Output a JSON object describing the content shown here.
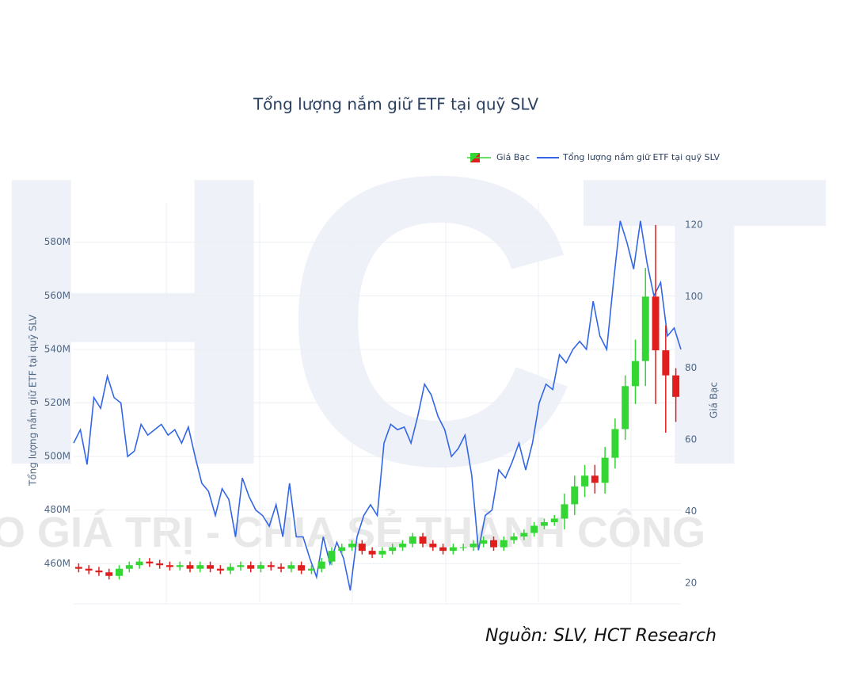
{
  "chart_data": {
    "type": "candlestick_line",
    "title": "Tổng lượng nắm giữ ETF tại quỹ SLV",
    "y_label": "Tổng lượng nắm giữ ETF tại quỹ SLV",
    "y2_label": "Giá Bạc",
    "watermark": "HCT",
    "watermark_slogan": "O GIÁ TRỊ - CHIA SẺ THÀNH CÔNG",
    "source": "Nguồn: SLV, HCT Research",
    "ylim": [
      445,
      595
    ],
    "yticks": [
      {
        "value": 460,
        "label": "460M"
      },
      {
        "value": 480,
        "label": "480M"
      },
      {
        "value": 500,
        "label": "500M"
      },
      {
        "value": 520,
        "label": "520M"
      },
      {
        "value": 540,
        "label": "540M"
      },
      {
        "value": 560,
        "label": "560M"
      },
      {
        "value": 580,
        "label": "580M"
      }
    ],
    "y2lim": [
      14.2,
      126.4
    ],
    "y2ticks": [
      20,
      40,
      60,
      80,
      100,
      120
    ],
    "grid": true,
    "legend": "top-right",
    "series": [
      {
        "name": "Giá Bạc",
        "type": "candlestick",
        "axis": "y2",
        "increasing_color": "#33d633",
        "decreasing_color": "#e01e1e",
        "open": [
          24.5,
          24,
          23.5,
          23,
          22,
          24,
          25,
          26,
          25.5,
          25,
          24.5,
          25,
          24,
          25,
          24,
          23.5,
          24.5,
          25,
          24,
          25,
          24.5,
          24,
          25,
          23.5,
          24,
          26,
          29,
          30,
          31,
          29,
          28,
          29,
          30,
          31,
          33,
          31,
          30,
          29,
          30,
          30,
          31,
          32,
          30,
          32,
          33,
          34,
          36,
          37,
          38,
          42,
          47,
          50,
          48,
          55,
          63,
          75,
          82,
          100,
          85,
          78
        ],
        "high": [
          25.5,
          25,
          24.5,
          24,
          25,
          26,
          27,
          27,
          26.5,
          26,
          26,
          26,
          26,
          26,
          25,
          25.5,
          26,
          26,
          26,
          26,
          25.5,
          26,
          26,
          25,
          27,
          30,
          31,
          32,
          32,
          30,
          30,
          31,
          32,
          34,
          34,
          32,
          31,
          31,
          31,
          32,
          33,
          33,
          33,
          34,
          35,
          37,
          38,
          39,
          45,
          50,
          53,
          53,
          58,
          66,
          78,
          88,
          108,
          120,
          92,
          80
        ],
        "low": [
          23,
          22.5,
          22,
          21,
          21,
          23,
          24,
          24.5,
          24,
          23.5,
          23.5,
          23,
          23,
          23,
          22.5,
          22.5,
          23.5,
          23,
          23,
          23.5,
          23,
          23,
          22.5,
          22.5,
          23,
          25,
          28,
          29,
          28,
          27,
          27,
          28,
          29,
          30,
          30,
          29,
          28,
          28,
          29,
          29,
          30,
          29,
          29,
          31,
          32,
          33,
          35,
          36,
          35,
          39,
          44,
          45,
          45,
          52,
          60,
          70,
          75,
          70,
          62,
          65
        ],
        "close": [
          24,
          23.5,
          23,
          22,
          24,
          25,
          26,
          25.5,
          25,
          24.5,
          25,
          24,
          25,
          24,
          23.5,
          24.5,
          25,
          24,
          25,
          24.5,
          24,
          25,
          23.5,
          24,
          26,
          29,
          30,
          31,
          29,
          28,
          29,
          30,
          31,
          33,
          31,
          30,
          29,
          30,
          30,
          31,
          32,
          30,
          32,
          33,
          34,
          36,
          37,
          38,
          42,
          47,
          50,
          48,
          55,
          63,
          75,
          82,
          100,
          85,
          78,
          72
        ]
      },
      {
        "name": "Tổng lượng nắm giữ ETF tại quỹ SLV",
        "type": "line",
        "color": "#3366e6",
        "values": [
          505,
          510,
          497,
          522,
          518,
          530,
          522,
          520,
          500,
          502,
          512,
          508,
          510,
          512,
          508,
          510,
          505,
          511,
          500,
          490,
          487,
          478,
          488,
          484,
          470,
          492,
          485,
          480,
          478,
          474,
          482,
          470,
          490,
          470,
          470,
          462,
          455,
          470,
          460,
          468,
          462,
          450,
          470,
          478,
          482,
          478,
          505,
          512,
          510,
          511,
          505,
          515,
          527,
          523,
          515,
          510,
          500,
          503,
          508,
          493,
          465,
          478,
          480,
          495,
          492,
          498,
          505,
          495,
          505,
          520,
          527,
          525,
          538,
          535,
          540,
          543,
          540,
          558,
          545,
          540,
          565,
          588,
          580,
          570,
          588,
          572,
          560,
          565,
          545,
          548,
          540
        ]
      }
    ]
  }
}
